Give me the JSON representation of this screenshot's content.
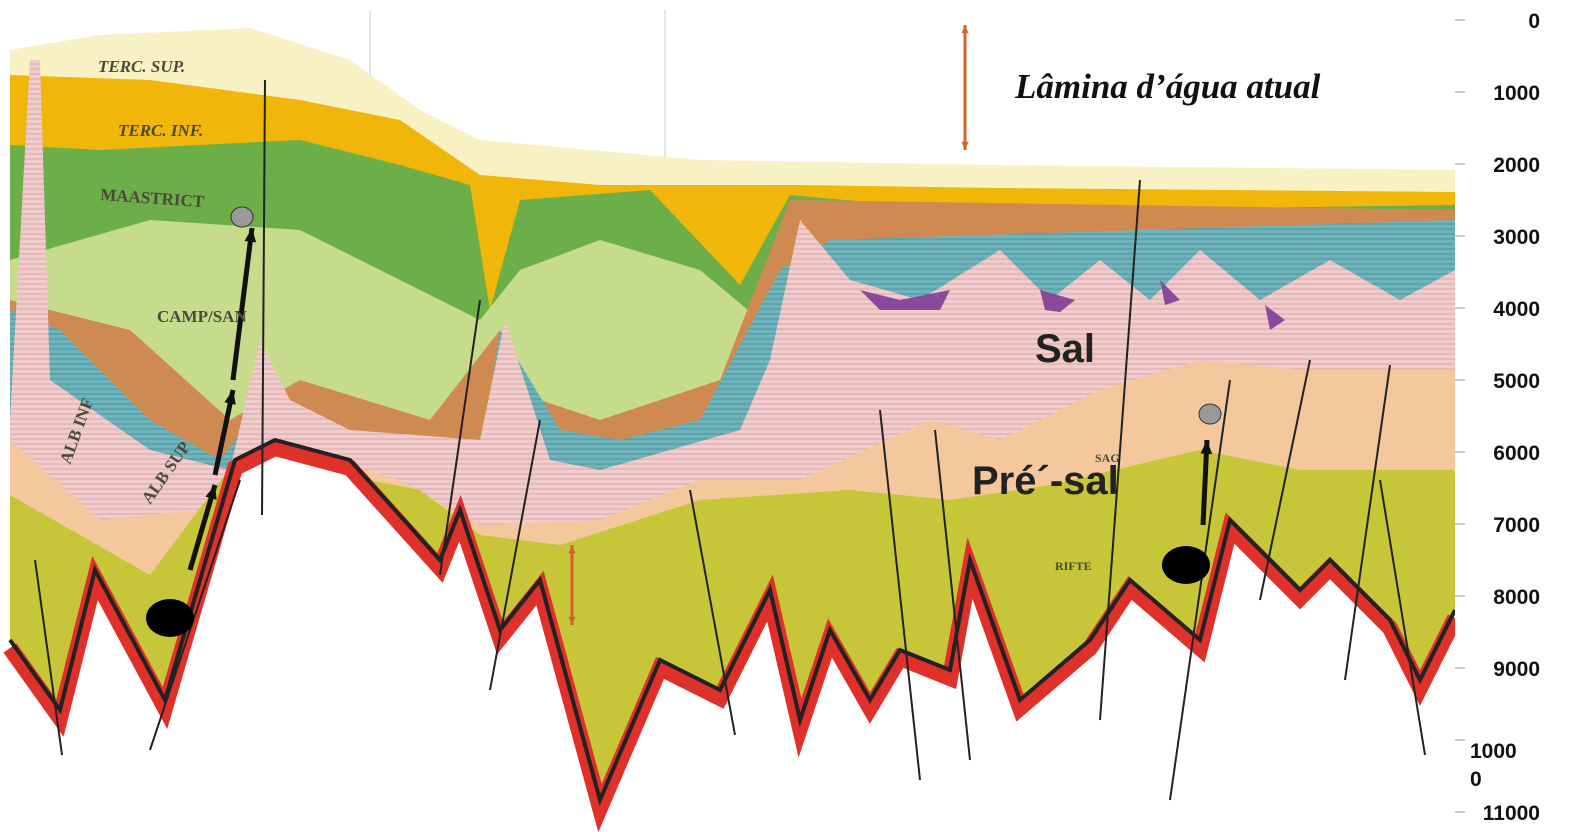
{
  "labels": {
    "water_depth": "Lâmina d’água atual",
    "terc_sup": "TERC. SUP.",
    "terc_inf": "TERC. INF.",
    "maastrict": "MAASTRICT",
    "camp_sant": "CAMP/SAN",
    "alb_inf": "ALB INF",
    "alb_sup": "ALB SUP",
    "sag": "SAG",
    "rifte": "RIFTE",
    "sal": "Sal",
    "pre_sal": "Pré´-sal"
  },
  "depth_axis": {
    "ticks": [
      "0",
      "1000",
      "2000",
      "3000",
      "4000",
      "5000",
      "6000",
      "7000",
      "8000",
      "9000",
      [
        "1000",
        "0"
      ],
      "11000"
    ]
  }
}
